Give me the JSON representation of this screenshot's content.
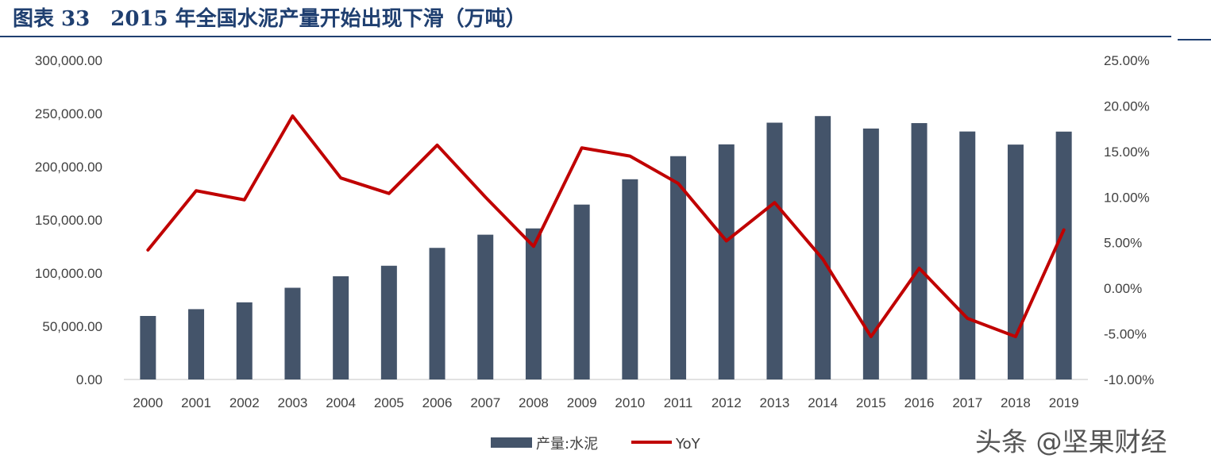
{
  "title": "图表 33　2015 年全国水泥产量开始出现下滑（万吨）",
  "watermark": "头条 @坚果财经",
  "colors": {
    "bar": "#44546a",
    "line": "#c00000",
    "title": "#1f3f70",
    "axis": "#d9d9d9"
  },
  "chart_data": {
    "type": "bar",
    "categories": [
      "2000",
      "2001",
      "2002",
      "2003",
      "2004",
      "2005",
      "2006",
      "2007",
      "2008",
      "2009",
      "2010",
      "2011",
      "2012",
      "2013",
      "2014",
      "2015",
      "2016",
      "2017",
      "2018",
      "2019"
    ],
    "series": [
      {
        "name": "产量:水泥",
        "type": "bar",
        "axis": "left",
        "values": [
          59700,
          66100,
          72500,
          86200,
          97000,
          106900,
          123700,
          136100,
          142000,
          164400,
          188200,
          209900,
          221000,
          241400,
          247600,
          235900,
          241000,
          233100,
          220800,
          233000
        ]
      },
      {
        "name": "YoY",
        "type": "line",
        "axis": "right",
        "values": [
          4.2,
          10.7,
          9.7,
          18.9,
          12.1,
          10.4,
          15.7,
          10.0,
          4.6,
          15.4,
          14.5,
          11.5,
          5.2,
          9.4,
          3.2,
          -5.3,
          2.2,
          -3.3,
          -5.3,
          6.4
        ]
      }
    ],
    "y_left": {
      "ylim": [
        0,
        300000
      ],
      "ticks": [
        0,
        50000,
        100000,
        150000,
        200000,
        250000,
        300000
      ],
      "tick_labels": [
        "0.00",
        "50,000.00",
        "100,000.00",
        "150,000.00",
        "200,000.00",
        "250,000.00",
        "300,000.00"
      ]
    },
    "y_right": {
      "ylim": [
        -10,
        25
      ],
      "ticks": [
        -10,
        -5,
        0,
        5,
        10,
        15,
        20,
        25
      ],
      "tick_labels": [
        "-10.00%",
        "-5.00%",
        "0.00%",
        "5.00%",
        "10.00%",
        "15.00%",
        "20.00%",
        "25.00%"
      ]
    },
    "legend": {
      "position": "bottom-center",
      "entries": [
        "产量:水泥",
        "YoY"
      ]
    },
    "grid": false
  }
}
